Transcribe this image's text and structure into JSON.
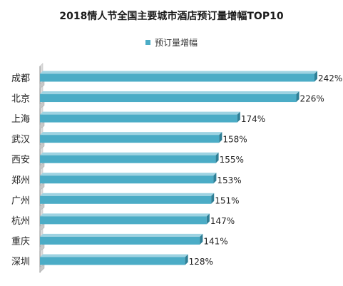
{
  "chart_data": {
    "type": "bar",
    "orientation": "horizontal",
    "title": "2018情人节全国主要城市酒店预订量增幅TOP10",
    "categories": [
      "成都",
      "北京",
      "上海",
      "武汉",
      "西安",
      "郑州",
      "广州",
      "杭州",
      "重庆",
      "深圳"
    ],
    "series": [
      {
        "name": "预订量增幅",
        "values": [
          242,
          226,
          174,
          158,
          155,
          153,
          151,
          147,
          141,
          128
        ],
        "labels": [
          "242%",
          "226%",
          "174%",
          "158%",
          "155%",
          "153%",
          "151%",
          "147%",
          "141%",
          "128%"
        ]
      }
    ],
    "xlim": [
      0,
      242
    ],
    "unit": "%",
    "grid": false,
    "legend_position": "top",
    "colors": {
      "bar_front": "#4bacc6",
      "bar_top": "#9ed3e2",
      "bar_side": "#2f7f96",
      "floor_front": "#c8c8c8",
      "floor_top": "#e6e6e6"
    }
  }
}
